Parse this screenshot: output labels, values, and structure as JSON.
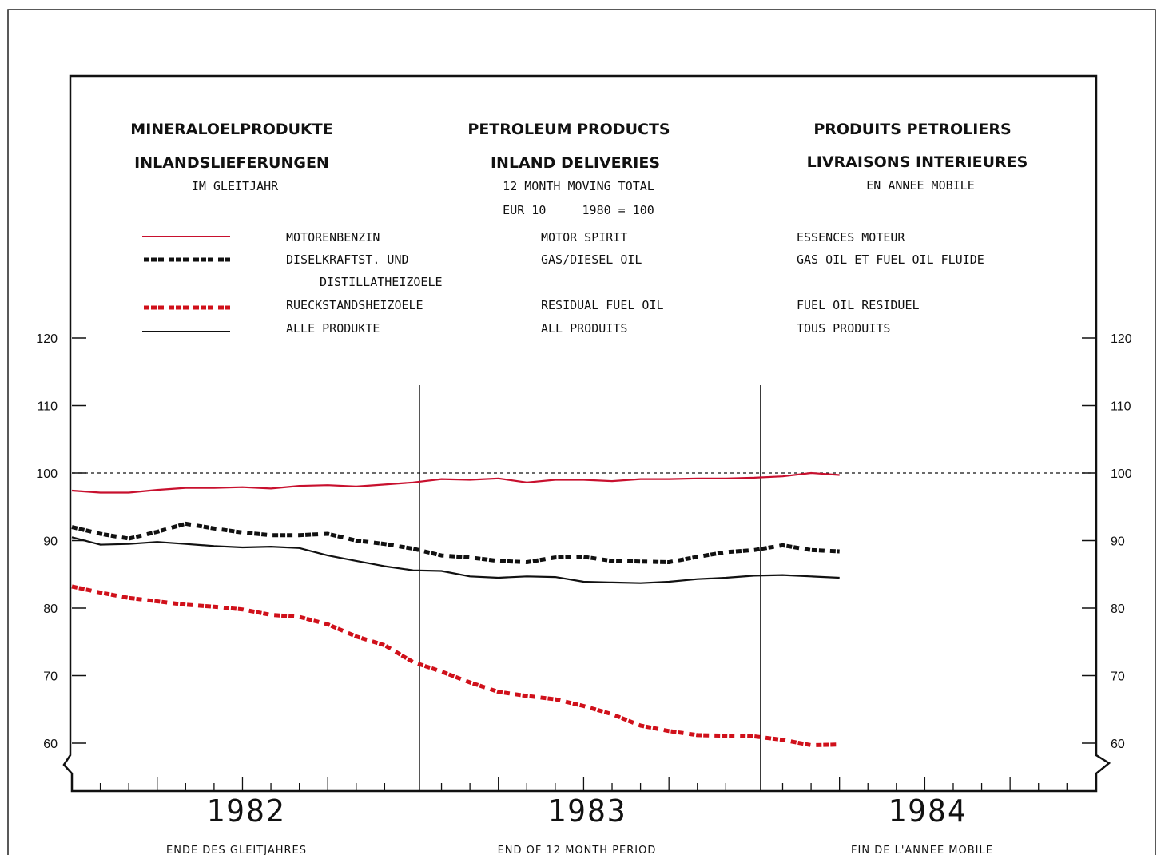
{
  "colors": {
    "motor_spirit": "#c8102e",
    "gas_diesel": "#111111",
    "residual": "#d0101a",
    "all_products": "#111111"
  },
  "header": {
    "de_title": "MINERALOELPRODUKTE",
    "de_sub": "INLANDSLIEFERUNGEN",
    "de_note": "IM GLEITJAHR",
    "en_title": "PETROLEUM PRODUCTS",
    "en_sub": "INLAND DELIVERIES",
    "en_note": "12 MONTH MOVING TOTAL",
    "en_note2": "EUR 10     1980 = 100",
    "fr_title": "PRODUITS PETROLIERS",
    "fr_sub": "LIVRAISONS INTERIEURES",
    "fr_note": "EN ANNEE MOBILE"
  },
  "legend": [
    {
      "de": "MOTORENBENZIN",
      "en": "MOTOR SPIRIT",
      "fr": "ESSENCES MOTEUR"
    },
    {
      "de": "DISELKRAFTST. UND",
      "de2": "DISTILLATHEIZOELE",
      "en": "GAS/DIESEL OIL",
      "fr": "GAS OIL ET FUEL OIL FLUIDE"
    },
    {
      "de": "RUECKSTANDSHEIZOELE",
      "en": "RESIDUAL FUEL OIL",
      "fr": "FUEL OIL RESIDUEL"
    },
    {
      "de": "ALLE PRODUKTE",
      "en": "ALL PRODUITS",
      "fr": "TOUS PRODUITS"
    }
  ],
  "axis": {
    "y_ticks": [
      "60",
      "70",
      "80",
      "90",
      "100",
      "110",
      "120"
    ],
    "years": [
      "1982",
      "1983",
      "1984"
    ]
  },
  "footer": {
    "de": "ENDE DES GLEITJAHRES",
    "en": "END OF 12 MONTH PERIOD",
    "fr": "FIN DE L'ANNEE MOBILE"
  },
  "chart_data": {
    "type": "line",
    "x_unit": "month index (1 = Jan 1982)",
    "x": [
      1,
      2,
      3,
      4,
      5,
      6,
      7,
      8,
      9,
      10,
      11,
      12,
      13,
      14,
      15,
      16,
      17,
      18,
      19,
      20,
      21,
      22,
      23,
      24,
      25,
      26,
      27,
      28
    ],
    "ylim": [
      55,
      120
    ],
    "xlim": [
      1,
      36
    ],
    "reference_line": 100,
    "grid": false,
    "series": [
      {
        "name": "MOTORENBENZIN / MOTOR SPIRIT / ESSENCES MOTEUR",
        "style": "solid",
        "color": "#c8102e",
        "values": [
          97.4,
          97.1,
          97.1,
          97.5,
          97.8,
          97.8,
          97.9,
          97.7,
          98.1,
          98.2,
          98.0,
          98.3,
          98.6,
          99.1,
          99.0,
          99.2,
          98.6,
          99.0,
          99.0,
          98.8,
          99.1,
          99.1,
          99.2,
          99.2,
          99.3,
          99.5,
          100.0,
          99.7
        ]
      },
      {
        "name": "DISELKRAFTST. UND DISTILLATHEIZOELE / GAS/DIESEL OIL / GAS OIL ET FUEL OIL FLUIDE",
        "style": "dashed",
        "color": "#111111",
        "values": [
          92.0,
          91.0,
          90.3,
          91.3,
          92.5,
          91.8,
          91.2,
          90.8,
          90.8,
          91.0,
          90.0,
          89.5,
          88.8,
          87.8,
          87.5,
          87.0,
          86.8,
          87.5,
          87.6,
          87.0,
          86.9,
          86.8,
          87.6,
          88.3,
          88.6,
          89.3,
          88.6,
          88.4
        ]
      },
      {
        "name": "RUECKSTANDSHEIZOELE / RESIDUAL FUEL OIL / FUEL OIL RESIDUEL",
        "style": "dashed",
        "color": "#d0101a",
        "values": [
          83.2,
          82.3,
          81.5,
          81.0,
          80.5,
          80.2,
          79.8,
          79.0,
          78.7,
          77.6,
          75.8,
          74.5,
          72.0,
          70.6,
          69.0,
          67.6,
          67.0,
          66.5,
          65.5,
          64.3,
          62.6,
          61.8,
          61.2,
          61.1,
          61.0,
          60.5,
          59.7,
          59.8
        ]
      },
      {
        "name": "ALLE PRODUKTE / ALL PRODUITS / TOUS PRODUITS",
        "style": "solid",
        "color": "#111111",
        "values": [
          90.5,
          89.4,
          89.5,
          89.8,
          89.5,
          89.2,
          89.0,
          89.1,
          88.9,
          87.8,
          87.0,
          86.2,
          85.6,
          85.5,
          84.7,
          84.5,
          84.7,
          84.6,
          83.9,
          83.8,
          83.7,
          83.9,
          84.3,
          84.5,
          84.8,
          84.9,
          84.7,
          84.5
        ]
      }
    ]
  }
}
